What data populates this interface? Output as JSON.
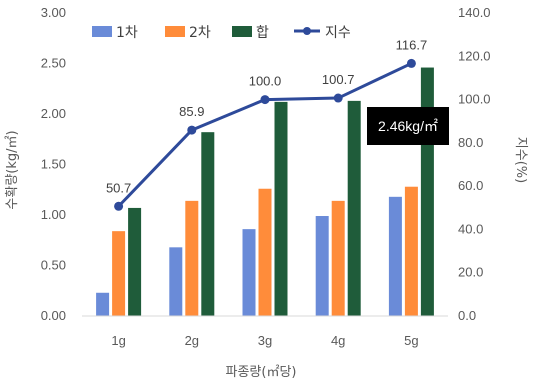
{
  "chart_data": {
    "type": "bar",
    "categories": [
      "1g",
      "2g",
      "3g",
      "4g",
      "5g"
    ],
    "series": [
      {
        "name": "1차",
        "kind": "bar",
        "axis": "left",
        "color": "#6a8bd8",
        "values": [
          0.23,
          0.68,
          0.86,
          0.99,
          1.18
        ]
      },
      {
        "name": "2차",
        "kind": "bar",
        "axis": "left",
        "color": "#ff8c3a",
        "values": [
          0.84,
          1.14,
          1.26,
          1.14,
          1.28
        ]
      },
      {
        "name": "합",
        "kind": "bar",
        "axis": "left",
        "color": "#1f5c3a",
        "values": [
          1.07,
          1.82,
          2.12,
          2.13,
          2.46
        ]
      },
      {
        "name": "지수",
        "kind": "line",
        "axis": "right",
        "color": "#2e4a9a",
        "values": [
          50.7,
          85.9,
          100.0,
          100.7,
          116.7
        ]
      }
    ],
    "line_labels": [
      "50.7",
      "85.9",
      "100.0",
      "100.7",
      "116.7"
    ],
    "xlabel": "파종량(㎡당)",
    "ylabel": "수확량(kg/㎡)",
    "y2label": "지수(%)",
    "ylim": [
      0,
      3.0
    ],
    "y2lim": [
      0,
      140
    ],
    "yticks": [
      "0.00",
      "0.50",
      "1.00",
      "1.50",
      "2.00",
      "2.50",
      "3.00"
    ],
    "y2ticks": [
      "0.0",
      "20.0",
      "40.0",
      "60.0",
      "80.0",
      "100.0",
      "120.0",
      "140.0"
    ],
    "grid": false,
    "legend_position": "top",
    "annotation": {
      "text": "2.46kg/㎡",
      "series": "합",
      "category_index": 4
    }
  }
}
